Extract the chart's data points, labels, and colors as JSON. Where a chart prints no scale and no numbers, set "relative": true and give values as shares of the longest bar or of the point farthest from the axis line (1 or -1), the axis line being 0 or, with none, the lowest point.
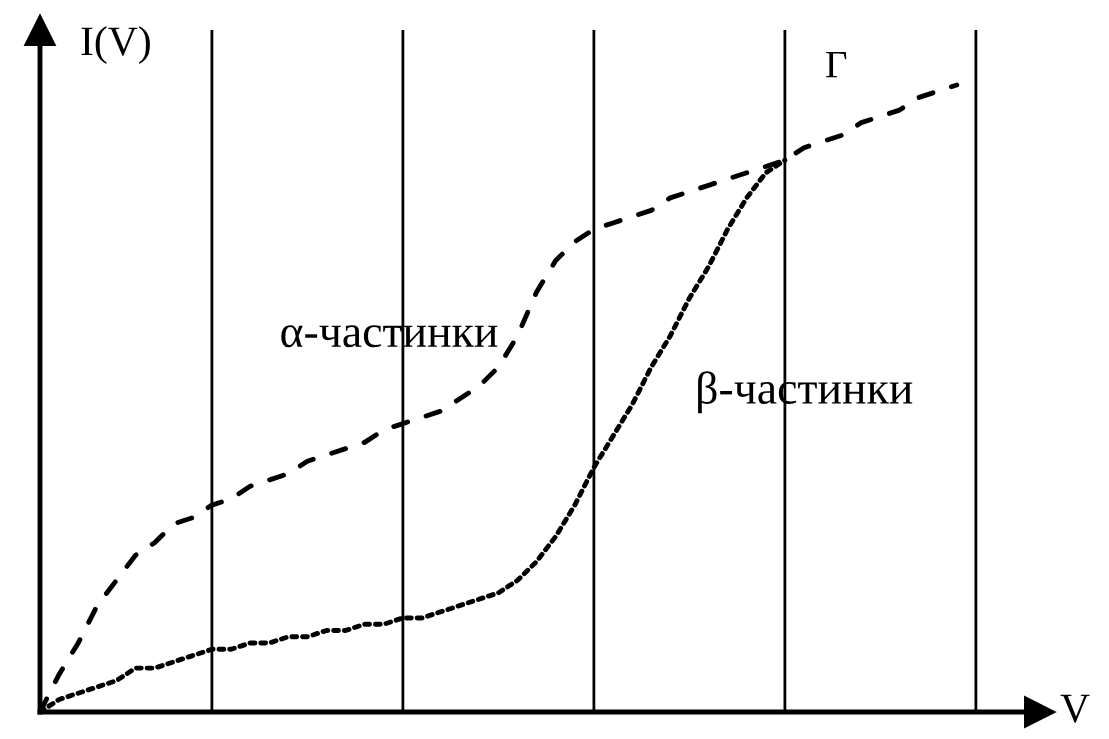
{
  "chart_data": {
    "type": "line",
    "relative": true,
    "ylabel": "I(V)",
    "xlabel": "V",
    "annotations": [
      "Γ"
    ],
    "grid": "x",
    "legend": false,
    "categories": [
      null,
      null,
      null,
      null,
      null,
      null,
      null,
      null,
      null,
      null,
      null,
      null,
      null,
      null,
      null,
      null,
      null,
      null,
      null,
      null,
      null,
      null,
      null,
      null,
      null,
      null,
      null,
      null,
      null,
      null,
      null,
      null,
      null,
      null,
      null,
      null,
      null,
      null,
      null,
      null,
      null,
      null,
      null,
      null,
      null,
      null,
      null,
      null,
      null,
      null
    ],
    "series": [
      {
        "name": "α-частинки",
        "color": "#000000",
        "line_style": "dashed",
        "values": [
          0,
          0.06,
          0.11,
          0.17,
          0.21,
          0.25,
          0.27,
          0.3,
          0.31,
          0.33,
          0.34,
          0.36,
          0.37,
          0.38,
          0.4,
          0.41,
          0.42,
          0.43,
          0.45,
          0.46,
          0.47,
          0.48,
          0.5,
          0.52,
          0.55,
          0.6,
          0.67,
          0.72,
          0.75,
          0.77,
          0.78,
          0.79,
          0.8,
          0.82,
          0.83,
          0.84,
          0.85,
          0.86,
          0.87,
          0.88,
          0.9,
          0.91,
          0.92,
          0.94,
          0.95,
          0.96,
          0.98,
          0.99,
          1.0,
          null
        ]
      },
      {
        "name": "β-частинки",
        "color": "#000000",
        "line_style": "dotted",
        "values": [
          0,
          0.02,
          0.03,
          0.04,
          0.05,
          0.07,
          0.07,
          0.08,
          0.09,
          0.1,
          0.1,
          0.11,
          0.11,
          0.12,
          0.12,
          0.13,
          0.13,
          0.14,
          0.14,
          0.15,
          0.15,
          0.16,
          0.17,
          0.18,
          0.19,
          0.21,
          0.24,
          0.28,
          0.33,
          0.39,
          0.44,
          0.49,
          0.55,
          0.6,
          0.66,
          0.71,
          0.77,
          0.82,
          0.86,
          0.88,
          null,
          null,
          null,
          null,
          null,
          null,
          null,
          null,
          null,
          null
        ]
      }
    ]
  }
}
